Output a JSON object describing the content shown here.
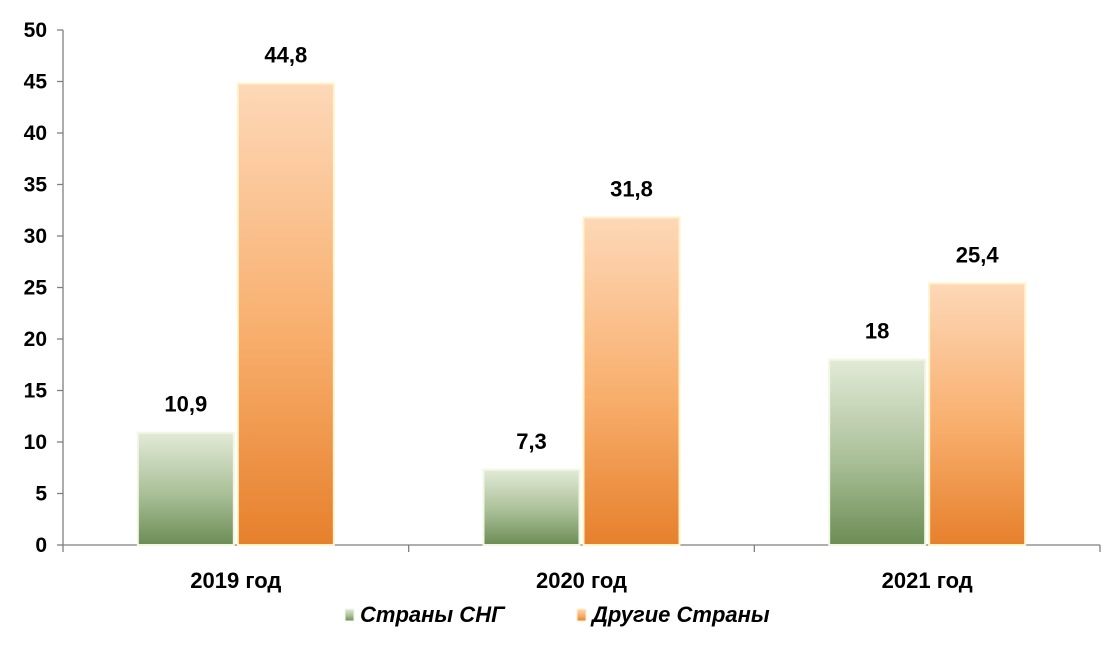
{
  "chart_data": {
    "type": "bar",
    "categories": [
      "2019 год",
      "2020 год",
      "2021 год"
    ],
    "series": [
      {
        "name": "Страны СНГ",
        "values": [
          10.9,
          7.3,
          18
        ],
        "labels": [
          "10,9",
          "7,3",
          "18"
        ],
        "color": "#8faa7c"
      },
      {
        "name": "Другие Страны",
        "values": [
          44.8,
          31.8,
          25.4
        ],
        "labels": [
          "44,8",
          "31,8",
          "25,4"
        ],
        "color": "#f4a460"
      }
    ],
    "ylim": [
      0,
      50
    ],
    "yticks": [
      0,
      5,
      10,
      15,
      20,
      25,
      30,
      35,
      40,
      45,
      50
    ],
    "ytick_labels": [
      "0",
      "5",
      "10",
      "15",
      "20",
      "25",
      "30",
      "35",
      "40",
      "45",
      "50"
    ],
    "grid": false,
    "legend": "bottom-center"
  },
  "colors": {
    "cis_light": "#dfe8d3",
    "cis_dark": "#6f9058",
    "other_light": "#fdd7b6",
    "other_dark": "#e8822e",
    "axis": "#7f7f7f"
  }
}
